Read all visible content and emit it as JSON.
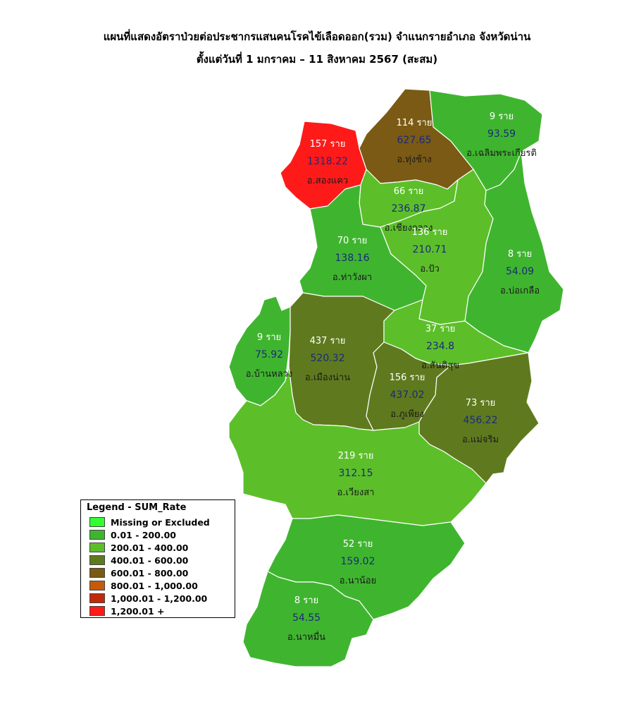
{
  "title_line1": "แผนที่แสดงอัตราป่วยต่อประชากรแสนคนโรคไข้เลือดออก(รวม) จำแนกรายอำเภอ จังหวัดน่าน",
  "title_line2": "ตั้งแต่วันที่  1 มกราคม – 11 สิงหาคม 2567 (สะสม)",
  "legend": {
    "title": "Legend - SUM_Rate",
    "items": [
      {
        "label": "Missing or Excluded",
        "color": "#33ff33"
      },
      {
        "label": "0.01 - 200.00",
        "color": "#3fb52f"
      },
      {
        "label": "200.01 - 400.00",
        "color": "#5cbf2a"
      },
      {
        "label": "400.01 - 600.00",
        "color": "#5f7a1e"
      },
      {
        "label": "600.01 - 800.00",
        "color": "#7a5a14"
      },
      {
        "label": "800.01 - 1,000.00",
        "color": "#c45a0a"
      },
      {
        "label": "1,000.01 - 1,200.00",
        "color": "#c02a0a"
      },
      {
        "label": "1,200.01 +",
        "color": "#ff1a1a"
      }
    ]
  },
  "districts": [
    {
      "name": "อ.สองแคว",
      "cases": "157 ราย",
      "rate": "1318.22",
      "color": "#ff1a1a"
    },
    {
      "name": "อ.ทุ่งช้าง",
      "cases": "114 ราย",
      "rate": "627.65",
      "color": "#7a5a14"
    },
    {
      "name": "อ.เฉลิมพระเกียรติ",
      "cases": "9 ราย",
      "rate": "93.59",
      "color": "#3fb52f"
    },
    {
      "name": "อ.เชียงกลาง",
      "cases": "66 ราย",
      "rate": "236.87",
      "color": "#5cbf2a"
    },
    {
      "name": "อ.ท่าวังผา",
      "cases": "70 ราย",
      "rate": "138.16",
      "color": "#3fb52f"
    },
    {
      "name": "อ.ปัว",
      "cases": "136 ราย",
      "rate": "210.71",
      "color": "#5cbf2a"
    },
    {
      "name": "อ.บ่อเกลือ",
      "cases": "8 ราย",
      "rate": "54.09",
      "color": "#3fb52f"
    },
    {
      "name": "อ.บ้านหลวง",
      "cases": "9 ราย",
      "rate": "75.92",
      "color": "#3fb52f"
    },
    {
      "name": "อ.เมืองน่าน",
      "cases": "437 ราย",
      "rate": "520.32",
      "color": "#5f7a1e"
    },
    {
      "name": "อ.สันติสุข",
      "cases": "37 ราย",
      "rate": "234.8",
      "color": "#5cbf2a"
    },
    {
      "name": "อ.ภูเพียง",
      "cases": "156 ราย",
      "rate": "437.02",
      "color": "#5f7a1e"
    },
    {
      "name": "อ.แม่จริม",
      "cases": "73 ราย",
      "rate": "456.22",
      "color": "#5f7a1e"
    },
    {
      "name": "อ.เวียงสา",
      "cases": "219 ราย",
      "rate": "312.15",
      "color": "#5cbf2a"
    },
    {
      "name": "อ.นาน้อย",
      "cases": "52 ราย",
      "rate": "159.02",
      "color": "#3fb52f"
    },
    {
      "name": "อ.นาหมื่น",
      "cases": "8 ราย",
      "rate": "54.55",
      "color": "#3fb52f"
    }
  ]
}
